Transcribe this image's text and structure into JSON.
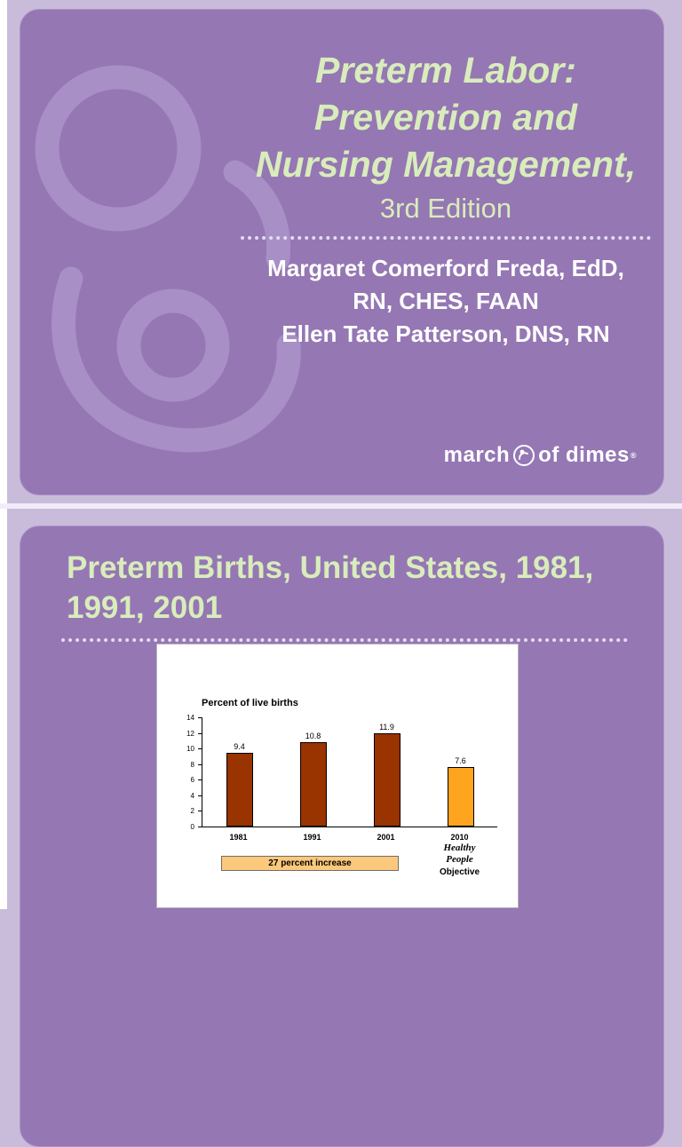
{
  "slide1": {
    "title_lines": [
      "Preterm Labor:",
      "Prevention and",
      "Nursing Management,"
    ],
    "subtitle": "3rd Edition",
    "author_lines": [
      "Margaret Comerford Freda, EdD,",
      "RN, CHES, FAAN",
      "Ellen Tate Patterson, DNS, RN"
    ],
    "logo": {
      "word1": "march",
      "word2": "of dimes",
      "reg": "®"
    }
  },
  "slide2": {
    "title_lines": [
      "Preterm Births, United States, 1981,",
      "1991, 2001"
    ]
  },
  "chart_data": {
    "type": "bar",
    "title": "Percent of live births",
    "categories": [
      "1981",
      "1991",
      "2001",
      "2010"
    ],
    "values": [
      9.4,
      10.8,
      11.9,
      7.6
    ],
    "value_labels": [
      "9.4",
      "10.8",
      "11.9",
      "7.6"
    ],
    "bar_colors": [
      "#993300",
      "#993300",
      "#993300",
      "#ffa41e"
    ],
    "ylim": [
      0,
      14
    ],
    "yticks": [
      0,
      2,
      4,
      6,
      8,
      10,
      12,
      14
    ],
    "grid": false,
    "legend": false,
    "xlabel": "",
    "ylabel": "",
    "annotation": "27 percent increase",
    "last_category_sublabels": [
      "Healthy",
      "People",
      "Objective"
    ]
  },
  "colors": {
    "page_bg": "#c9bcdb",
    "slide_bg": "#9577b4",
    "title_green": "#d8edbb",
    "author_white": "#ffffff",
    "watermark": "#a88fc5",
    "bar_dark": "#993300",
    "bar_orange": "#ffa41e",
    "annotation_bg": "#fcc87c"
  }
}
